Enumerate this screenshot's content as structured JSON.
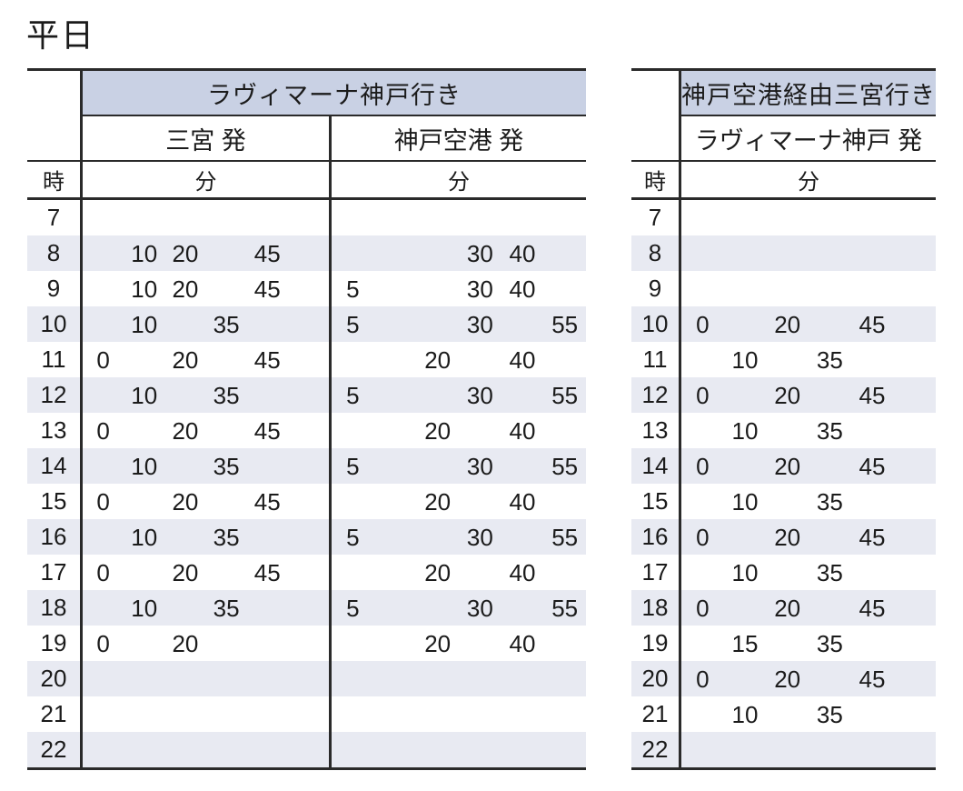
{
  "title": "平日",
  "colors": {
    "header_bg": "#c9d1e4",
    "row_alt_bg": "#e8eaf2",
    "border": "#2a2a2a",
    "text": "#1b1b1b"
  },
  "tables": [
    {
      "id": "to-lavimana-kobe",
      "route_header": "ラヴィマーナ神戸行き",
      "dep_headers": [
        "三宮 発",
        "神戸空港 発"
      ],
      "hour_label": "時",
      "minute_label": "分",
      "hours": [
        7,
        8,
        9,
        10,
        11,
        12,
        13,
        14,
        15,
        16,
        17,
        18,
        19,
        20,
        21,
        22
      ],
      "minutes": [
        [
          [],
          []
        ],
        [
          [
            10,
            20,
            45
          ],
          [
            30,
            40
          ]
        ],
        [
          [
            10,
            20,
            45
          ],
          [
            5,
            30,
            40
          ]
        ],
        [
          [
            10,
            35
          ],
          [
            5,
            30,
            55
          ]
        ],
        [
          [
            0,
            20,
            45
          ],
          [
            20,
            40
          ]
        ],
        [
          [
            10,
            35
          ],
          [
            5,
            30,
            55
          ]
        ],
        [
          [
            0,
            20,
            45
          ],
          [
            20,
            40
          ]
        ],
        [
          [
            10,
            35
          ],
          [
            5,
            30,
            55
          ]
        ],
        [
          [
            0,
            20,
            45
          ],
          [
            20,
            40
          ]
        ],
        [
          [
            10,
            35
          ],
          [
            5,
            30,
            55
          ]
        ],
        [
          [
            0,
            20,
            45
          ],
          [
            20,
            40
          ]
        ],
        [
          [
            10,
            35
          ],
          [
            5,
            30,
            55
          ]
        ],
        [
          [
            0,
            20
          ],
          [
            20,
            40
          ]
        ],
        [
          [],
          []
        ],
        [
          [],
          []
        ],
        [
          [],
          []
        ]
      ]
    },
    {
      "id": "to-sannomiya-via-kobe-airport",
      "route_header": "神戸空港経由三宮行き",
      "dep_headers": [
        "ラヴィマーナ神戸 発"
      ],
      "hour_label": "時",
      "minute_label": "分",
      "hours": [
        7,
        8,
        9,
        10,
        11,
        12,
        13,
        14,
        15,
        16,
        17,
        18,
        19,
        20,
        21,
        22
      ],
      "minutes": [
        [
          []
        ],
        [
          []
        ],
        [
          []
        ],
        [
          [
            0,
            20,
            45
          ]
        ],
        [
          [
            10,
            35
          ]
        ],
        [
          [
            0,
            20,
            45
          ]
        ],
        [
          [
            10,
            35
          ]
        ],
        [
          [
            0,
            20,
            45
          ]
        ],
        [
          [
            10,
            35
          ]
        ],
        [
          [
            0,
            20,
            45
          ]
        ],
        [
          [
            10,
            35
          ]
        ],
        [
          [
            0,
            20,
            45
          ]
        ],
        [
          [
            15,
            35
          ]
        ],
        [
          [
            0,
            20,
            45
          ]
        ],
        [
          [
            10,
            35
          ]
        ],
        [
          []
        ]
      ]
    }
  ]
}
